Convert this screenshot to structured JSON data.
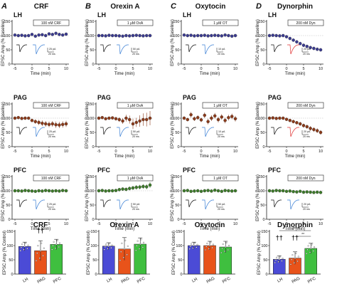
{
  "panels": [
    {
      "letter": "A",
      "title": "CRF",
      "drug": "100 nM CRF"
    },
    {
      "letter": "B",
      "title": "Orexin A",
      "drug": "1 μM OxA"
    },
    {
      "letter": "C",
      "title": "Oxytocin",
      "drug": "1 μM OT"
    },
    {
      "letter": "D",
      "title": "Dynorphin",
      "drug": "200 nM Dyn"
    }
  ],
  "row_labels": [
    "LH",
    "PAG",
    "PFC"
  ],
  "time_axis": {
    "label": "Time (min)",
    "ticks": [
      "-5",
      "0",
      "5",
      "10"
    ]
  },
  "y_axis_label": "EPSC Amp (% Baseline)",
  "y_ticks": [
    "0",
    "50",
    "100",
    "150"
  ],
  "bar_y_label": "EPSC Amp (% Control)",
  "bar_y_ticks": [
    "0",
    "50",
    "100",
    "150"
  ],
  "bar_categories": [
    "LH",
    "PAG",
    "PFC"
  ],
  "scale_labels": {
    "A": [
      [
        "25 pA",
        "20 ms"
      ],
      [
        "25 pA",
        "20 ms"
      ],
      [
        "25 pA",
        "20 ms"
      ]
    ],
    "B": [
      [
        "50 pA",
        "20 ms"
      ],
      [
        "50 pA",
        "20 ms"
      ],
      [
        "50 pA",
        "20 ms"
      ]
    ],
    "C": [
      [
        "10 pA",
        "20 ms"
      ],
      [
        "10 pA",
        "20 ms"
      ],
      [
        "50 pA",
        "20 ms"
      ]
    ],
    "D": [
      [
        "20 pA",
        "20 ms"
      ],
      [
        "20 pA",
        "20 ms"
      ],
      [
        "20 pA",
        "20 ms"
      ]
    ]
  },
  "significance": {
    "daggers": "††",
    "stars_top": "***",
    "stars_bottom": "**"
  },
  "colors": {
    "LH": "#3b3b8f",
    "PAG": "#8b3a1a",
    "PFC": "#3d7a2a",
    "bar_LH": "#4b4bd6",
    "bar_PAG": "#e8531a",
    "bar_PFC": "#3fbf3f",
    "trace_after_blue": "#3a7fd5",
    "trace_after_red": "#e03030"
  },
  "chart_data": [
    {
      "type": "scatter",
      "panel": "A",
      "xlim": [
        -5,
        10
      ],
      "ylim": [
        0,
        150
      ],
      "series": [
        {
          "name": "LH",
          "x": [
            -5,
            -4,
            -3,
            -2,
            -1,
            0,
            1,
            2,
            3,
            4,
            5,
            6,
            7,
            8,
            9,
            10
          ],
          "values": [
            102,
            100,
            101,
            99,
            100,
            104,
            98,
            102,
            103,
            100,
            106,
            104,
            108,
            104,
            102,
            105
          ],
          "err": [
            3,
            3,
            3,
            3,
            3,
            3,
            3,
            3,
            4,
            4,
            4,
            4,
            5,
            5,
            5,
            5
          ]
        },
        {
          "name": "PAG",
          "x": [
            -5,
            -4,
            -3,
            -2,
            -1,
            0,
            1,
            2,
            3,
            4,
            5,
            6,
            7,
            8,
            9,
            10
          ],
          "values": [
            100,
            102,
            99,
            100,
            100,
            92,
            88,
            85,
            82,
            80,
            78,
            80,
            77,
            76,
            78,
            80
          ],
          "err": [
            4,
            4,
            4,
            4,
            4,
            6,
            8,
            9,
            10,
            10,
            10,
            10,
            11,
            11,
            11,
            11
          ]
        },
        {
          "name": "PFC",
          "x": [
            -5,
            -4,
            -3,
            -2,
            -1,
            0,
            1,
            2,
            3,
            4,
            5,
            6,
            7,
            8,
            9,
            10
          ],
          "values": [
            100,
            100,
            99,
            101,
            100,
            99,
            98,
            100,
            99,
            101,
            100,
            99,
            100,
            99,
            101,
            100
          ],
          "err": [
            3,
            3,
            3,
            3,
            3,
            3,
            3,
            3,
            3,
            3,
            3,
            3,
            3,
            3,
            3,
            3
          ]
        }
      ]
    },
    {
      "type": "scatter",
      "panel": "B",
      "xlim": [
        -5,
        10
      ],
      "ylim": [
        0,
        150
      ],
      "series": [
        {
          "name": "LH",
          "x": [
            -5,
            -4,
            -3,
            -2,
            -1,
            0,
            1,
            2,
            3,
            4,
            5,
            6,
            7,
            8,
            9,
            10
          ],
          "values": [
            100,
            100,
            99,
            101,
            100,
            100,
            99,
            98,
            100,
            99,
            100,
            101,
            100,
            99,
            100,
            100
          ],
          "err": [
            2,
            2,
            2,
            2,
            2,
            2,
            2,
            2,
            2,
            2,
            2,
            2,
            2,
            2,
            2,
            2
          ]
        },
        {
          "name": "PAG",
          "x": [
            -5,
            -4,
            -3,
            -2,
            -1,
            0,
            1,
            2,
            3,
            4,
            5,
            6,
            7,
            8,
            9,
            10
          ],
          "values": [
            100,
            102,
            98,
            100,
            101,
            98,
            95,
            90,
            100,
            95,
            80,
            85,
            90,
            95,
            95,
            100
          ],
          "err": [
            4,
            4,
            4,
            4,
            4,
            6,
            8,
            10,
            12,
            14,
            18,
            16,
            20,
            22,
            24,
            25
          ]
        },
        {
          "name": "PFC",
          "x": [
            -5,
            -4,
            -3,
            -2,
            -1,
            0,
            1,
            2,
            3,
            4,
            5,
            6,
            7,
            8,
            9,
            10
          ],
          "values": [
            100,
            101,
            99,
            100,
            100,
            101,
            104,
            106,
            105,
            108,
            110,
            112,
            113,
            115,
            114,
            120
          ],
          "err": [
            4,
            4,
            4,
            4,
            4,
            5,
            6,
            6,
            6,
            7,
            7,
            8,
            8,
            8,
            9,
            10
          ]
        }
      ]
    },
    {
      "type": "scatter",
      "panel": "C",
      "xlim": [
        -5,
        10
      ],
      "ylim": [
        0,
        150
      ],
      "series": [
        {
          "name": "LH",
          "x": [
            -5,
            -4,
            -3,
            -2,
            -1,
            0,
            1,
            2,
            3,
            4,
            5,
            6,
            7,
            8,
            9,
            10
          ],
          "values": [
            102,
            100,
            101,
            99,
            100,
            100,
            101,
            99,
            100,
            101,
            100,
            99,
            102,
            100,
            98,
            100
          ],
          "err": [
            3,
            3,
            3,
            3,
            3,
            3,
            3,
            3,
            3,
            3,
            3,
            3,
            3,
            3,
            3,
            3
          ]
        },
        {
          "name": "PAG",
          "x": [
            -5,
            -4,
            -3,
            -2,
            -1,
            0,
            1,
            2,
            3,
            4,
            5,
            6,
            7,
            8,
            9,
            10
          ],
          "values": [
            100,
            95,
            112,
            98,
            102,
            94,
            110,
            88,
            100,
            108,
            95,
            104,
            92,
            102,
            106,
            98
          ],
          "err": [
            6,
            6,
            10,
            8,
            8,
            8,
            10,
            10,
            10,
            10,
            10,
            10,
            10,
            10,
            10,
            10
          ]
        },
        {
          "name": "PFC",
          "x": [
            -5,
            -4,
            -3,
            -2,
            -1,
            0,
            1,
            2,
            3,
            4,
            5,
            6,
            7,
            8,
            9,
            10
          ],
          "values": [
            100,
            101,
            98,
            99,
            100,
            98,
            100,
            101,
            99,
            102,
            100,
            98,
            101,
            100,
            99,
            100
          ],
          "err": [
            5,
            5,
            5,
            5,
            5,
            5,
            5,
            5,
            5,
            5,
            5,
            5,
            5,
            5,
            5,
            5
          ]
        }
      ]
    },
    {
      "type": "scatter",
      "panel": "D",
      "xlim": [
        -5,
        10
      ],
      "ylim": [
        0,
        150
      ],
      "series": [
        {
          "name": "LH",
          "x": [
            -5,
            -4,
            -3,
            -2,
            -1,
            0,
            1,
            2,
            3,
            4,
            5,
            6,
            7,
            8,
            9,
            10
          ],
          "values": [
            100,
            101,
            100,
            99,
            100,
            96,
            90,
            84,
            78,
            72,
            66,
            62,
            58,
            55,
            52,
            50
          ],
          "err": [
            3,
            3,
            3,
            3,
            3,
            4,
            5,
            5,
            6,
            6,
            6,
            6,
            6,
            6,
            6,
            6
          ]
        },
        {
          "name": "PAG",
          "x": [
            -5,
            -4,
            -3,
            -2,
            -1,
            0,
            1,
            2,
            3,
            4,
            5,
            6,
            7,
            8,
            9,
            10
          ],
          "values": [
            100,
            101,
            99,
            100,
            100,
            96,
            92,
            88,
            84,
            80,
            74,
            70,
            64,
            60,
            56,
            50
          ],
          "err": [
            3,
            3,
            3,
            3,
            3,
            4,
            5,
            6,
            6,
            7,
            7,
            7,
            8,
            8,
            8,
            8
          ]
        },
        {
          "name": "PFC",
          "x": [
            -5,
            -4,
            -3,
            -2,
            -1,
            0,
            1,
            2,
            3,
            4,
            5,
            6,
            7,
            8,
            9,
            10
          ],
          "values": [
            100,
            99,
            101,
            100,
            100,
            98,
            99,
            97,
            96,
            98,
            95,
            96,
            95,
            94,
            95,
            94
          ],
          "err": [
            4,
            4,
            4,
            4,
            4,
            4,
            4,
            4,
            4,
            4,
            4,
            4,
            4,
            4,
            4,
            4
          ]
        }
      ]
    },
    {
      "type": "bar",
      "panel": "A",
      "title": "CRF",
      "ylabel": "EPSC Amp (% Control)",
      "ylim": [
        0,
        150
      ],
      "categories": [
        "LH",
        "PAG",
        "PFC"
      ],
      "values": [
        97,
        82,
        104
      ],
      "err": [
        15,
        35,
        18
      ]
    },
    {
      "type": "bar",
      "panel": "B",
      "title": "Orexin A",
      "ylabel": "EPSC Amp (% Control)",
      "ylim": [
        0,
        150
      ],
      "categories": [
        "LH",
        "PAG",
        "PFC"
      ],
      "values": [
        98,
        88,
        105
      ],
      "err": [
        12,
        40,
        22
      ]
    },
    {
      "type": "bar",
      "panel": "C",
      "title": "Oxytocin",
      "ylabel": "EPSC Amp (% Control)",
      "ylim": [
        0,
        150
      ],
      "categories": [
        "LH",
        "PAG",
        "PFC"
      ],
      "values": [
        100,
        100,
        95
      ],
      "err": [
        12,
        15,
        20
      ]
    },
    {
      "type": "bar",
      "panel": "D",
      "title": "Dynorphin",
      "ylabel": "EPSC Amp (% Control)",
      "ylim": [
        0,
        150
      ],
      "categories": [
        "LH",
        "PAG",
        "PFC"
      ],
      "values": [
        52,
        56,
        90
      ],
      "err": [
        12,
        22,
        18
      ]
    }
  ]
}
